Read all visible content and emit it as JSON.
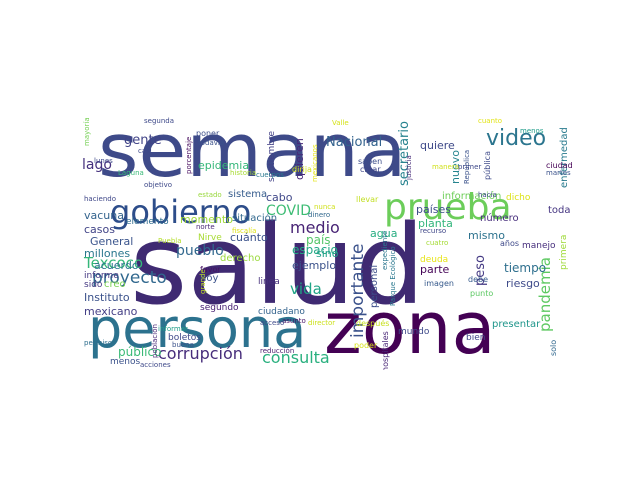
{
  "words": [
    {
      "text": "semana",
      "color": "#3e4a89"
    },
    {
      "text": "salud",
      "color": "#3f2a72"
    },
    {
      "text": "persona",
      "color": "#2c728e"
    },
    {
      "text": "zona",
      "color": "#440154"
    },
    {
      "text": "gobierno",
      "color": "#2d4d8a"
    },
    {
      "text": "prueba",
      "color": "#6ccd5a"
    },
    {
      "text": "video",
      "color": "#2b758e"
    },
    {
      "text": "proyecto",
      "color": "#31688e"
    },
    {
      "text": "corrupción",
      "color": "#472d7b"
    },
    {
      "text": "Texcoco",
      "color": "#35b779"
    },
    {
      "text": "consulta",
      "color": "#2ab07f"
    },
    {
      "text": "pandemia",
      "color": "#5ec962"
    },
    {
      "text": "importante",
      "color": "#3b528b"
    },
    {
      "text": "medio",
      "color": "#482475"
    },
    {
      "text": "vida",
      "color": "#20a486"
    },
    {
      "text": "pueblo",
      "color": "#31688e"
    },
    {
      "text": "COVID",
      "color": "#3dbc74"
    },
    {
      "text": "lago",
      "color": "#46327e"
    },
    {
      "text": "gente",
      "color": "#404387"
    },
    {
      "text": "Nacional",
      "color": "#33628d"
    },
    {
      "text": "secretario",
      "color": "#26828e"
    },
    {
      "text": "quiere",
      "color": "#3e4989"
    },
    {
      "text": "nuevo",
      "color": "#25848e"
    },
    {
      "text": "tiempo",
      "color": "#2e6f8e"
    },
    {
      "text": "peso",
      "color": "#443983"
    },
    {
      "text": "público",
      "color": "#3aba76"
    },
    {
      "text": "mexicano",
      "color": "#433e85"
    },
    {
      "text": "millones",
      "color": "#2a778e"
    },
    {
      "text": "General",
      "color": "#3a548c"
    },
    {
      "text": "casos",
      "color": "#414487"
    },
    {
      "text": "vacuna",
      "color": "#33638d"
    },
    {
      "text": "espacio",
      "color": "#22a884"
    },
    {
      "text": "ejemplo",
      "color": "#3b528b"
    },
    {
      "text": "país",
      "color": "#54c568"
    },
    {
      "text": "sino",
      "color": "#1fa088"
    },
    {
      "text": "cuánto",
      "color": "#3b528b"
    },
    {
      "text": "derecho",
      "color": "#9bd93c"
    },
    {
      "text": "momento",
      "color": "#a0da39"
    },
    {
      "text": "epidemia",
      "color": "#35b779"
    },
    {
      "text": "situación",
      "color": "#31688e"
    },
    {
      "text": "sistema",
      "color": "#365c8d"
    },
    {
      "text": "cabo",
      "color": "#3f4788"
    },
    {
      "text": "quieren",
      "color": "#482878"
    },
    {
      "text": "septiembre",
      "color": "#424086"
    },
    {
      "text": "dirija",
      "color": "#d2e21b"
    },
    {
      "text": "agua",
      "color": "#27ad81"
    },
    {
      "text": "personal",
      "color": "#3d4e8a"
    },
    {
      "text": "planta",
      "color": "#31b57b"
    },
    {
      "text": "países",
      "color": "#3d4d8a"
    },
    {
      "text": "parte",
      "color": "#450457"
    },
    {
      "text": "deuda",
      "color": "#e7e419"
    },
    {
      "text": "riesgo",
      "color": "#3e4a89"
    },
    {
      "text": "mismo",
      "color": "#2c728e"
    },
    {
      "text": "información",
      "color": "#6ece58"
    },
    {
      "text": "número",
      "color": "#472e7c"
    },
    {
      "text": "enfermedad",
      "color": "#297b8e"
    },
    {
      "text": "ciudad",
      "color": "#440154"
    },
    {
      "text": "toda",
      "color": "#453581"
    },
    {
      "text": "dicho",
      "color": "#dde318"
    },
    {
      "text": "manejo",
      "color": "#472f7d"
    },
    {
      "text": "primera",
      "color": "#9fda3a"
    },
    {
      "text": "Instituto",
      "color": "#3b528b"
    },
    {
      "text": "acuerdo",
      "color": "#2c738e"
    },
    {
      "text": "informe",
      "color": "#453882"
    },
    {
      "text": "sido",
      "color": "#453882"
    },
    {
      "text": "creo",
      "color": "#7ad151"
    },
    {
      "text": "elemento",
      "color": "#2f6c8e"
    },
    {
      "text": "hoy",
      "color": "#3b528b"
    },
    {
      "text": "favor",
      "color": "#471164"
    },
    {
      "text": "segundo",
      "color": "#482173"
    },
    {
      "text": "ciudadano",
      "color": "#33638d"
    },
    {
      "text": "linea",
      "color": "#462f7c"
    },
    {
      "text": "boletos",
      "color": "#3e4989"
    },
    {
      "text": "menos",
      "color": "#3b528b"
    },
    {
      "text": "mundo",
      "color": "#3e4989"
    },
    {
      "text": "presentar",
      "color": "#1f968b"
    },
    {
      "text": "debe",
      "color": "#375b8d"
    },
    {
      "text": "bien",
      "color": "#404588"
    },
    {
      "text": "solo",
      "color": "#31688e"
    },
    {
      "text": "Parque Ecológico",
      "color": "#2a788e"
    },
    {
      "text": "hospitales",
      "color": "#482576"
    },
    {
      "text": "después",
      "color": "#c8e020"
    },
    {
      "text": "poder",
      "color": "#d8e219"
    },
    {
      "text": "reducción",
      "color": "#481a6c"
    },
    {
      "text": "expediente",
      "color": "#2a768e"
    },
    {
      "text": "imagen",
      "color": "#375a8c"
    },
    {
      "text": "punto",
      "color": "#5cc863"
    },
    {
      "text": "años",
      "color": "#3e4989"
    },
    {
      "text": "cuatro",
      "color": "#a5db36"
    },
    {
      "text": "recurso",
      "color": "#3f4788"
    },
    {
      "text": "hacia",
      "color": "#3e4a89"
    },
    {
      "text": "pública",
      "color": "#3e4a89"
    },
    {
      "text": "República",
      "color": "#3b528b"
    },
    {
      "text": "manera",
      "color": "#d0e11c"
    },
    {
      "text": "primer",
      "color": "#3e4989"
    },
    {
      "text": "martes",
      "color": "#3b528b"
    },
    {
      "text": "menos",
      "color": "#1e9c89"
    },
    {
      "text": "cuanto",
      "color": "#e2e418"
    },
    {
      "text": "justicia",
      "color": "#472c7a"
    },
    {
      "text": "saben",
      "color": "#3d4e8a"
    },
    {
      "text": "crear",
      "color": "#3f4788"
    },
    {
      "text": "llevar",
      "color": "#c2df23"
    },
    {
      "text": "mexicanos",
      "color": "#e5e419"
    },
    {
      "text": "Valle",
      "color": "#d5e21a"
    },
    {
      "text": "cuerpos",
      "color": "#2a788e"
    },
    {
      "text": "nunca",
      "color": "#d0e11c"
    },
    {
      "text": "dinero",
      "color": "#31688e"
    },
    {
      "text": "director",
      "color": "#cde11d"
    },
    {
      "text": "asunto",
      "color": "#481467"
    },
    {
      "text": "norte",
      "color": "#482878"
    },
    {
      "text": "fiscalía",
      "color": "#dde318"
    },
    {
      "text": "Nirve",
      "color": "#a8db34"
    },
    {
      "text": "Puebla",
      "color": "#b5de2b"
    },
    {
      "text": "segunda",
      "color": "#3e4989"
    },
    {
      "text": "poner",
      "color": "#3d4e8a"
    },
    {
      "text": "todavía",
      "color": "#3b528b"
    },
    {
      "text": "porcentaje",
      "color": "#460b5e"
    },
    {
      "text": "casi",
      "color": "#3e4989"
    },
    {
      "text": "lunes",
      "color": "#3e4989"
    },
    {
      "text": "Laguna",
      "color": "#38b977"
    },
    {
      "text": "haciendo",
      "color": "#3f4788"
    },
    {
      "text": "historia",
      "color": "#a8db34"
    },
    {
      "text": "mayoría",
      "color": "#75d054"
    },
    {
      "text": "objetivo",
      "color": "#3e4989"
    },
    {
      "text": "estado",
      "color": "#99d83d"
    },
    {
      "text": "permiso",
      "color": "#2e6e8e"
    },
    {
      "text": "acciones",
      "color": "#3e4989"
    },
    {
      "text": "informar",
      "color": "#1f9e89"
    },
    {
      "text": "población",
      "color": "#482878"
    },
    {
      "text": "buena",
      "color": "#3b528b"
    },
    {
      "text": "acceso",
      "color": "#3e4989"
    },
    {
      "text": "grande",
      "color": "#c0df25"
    }
  ]
}
